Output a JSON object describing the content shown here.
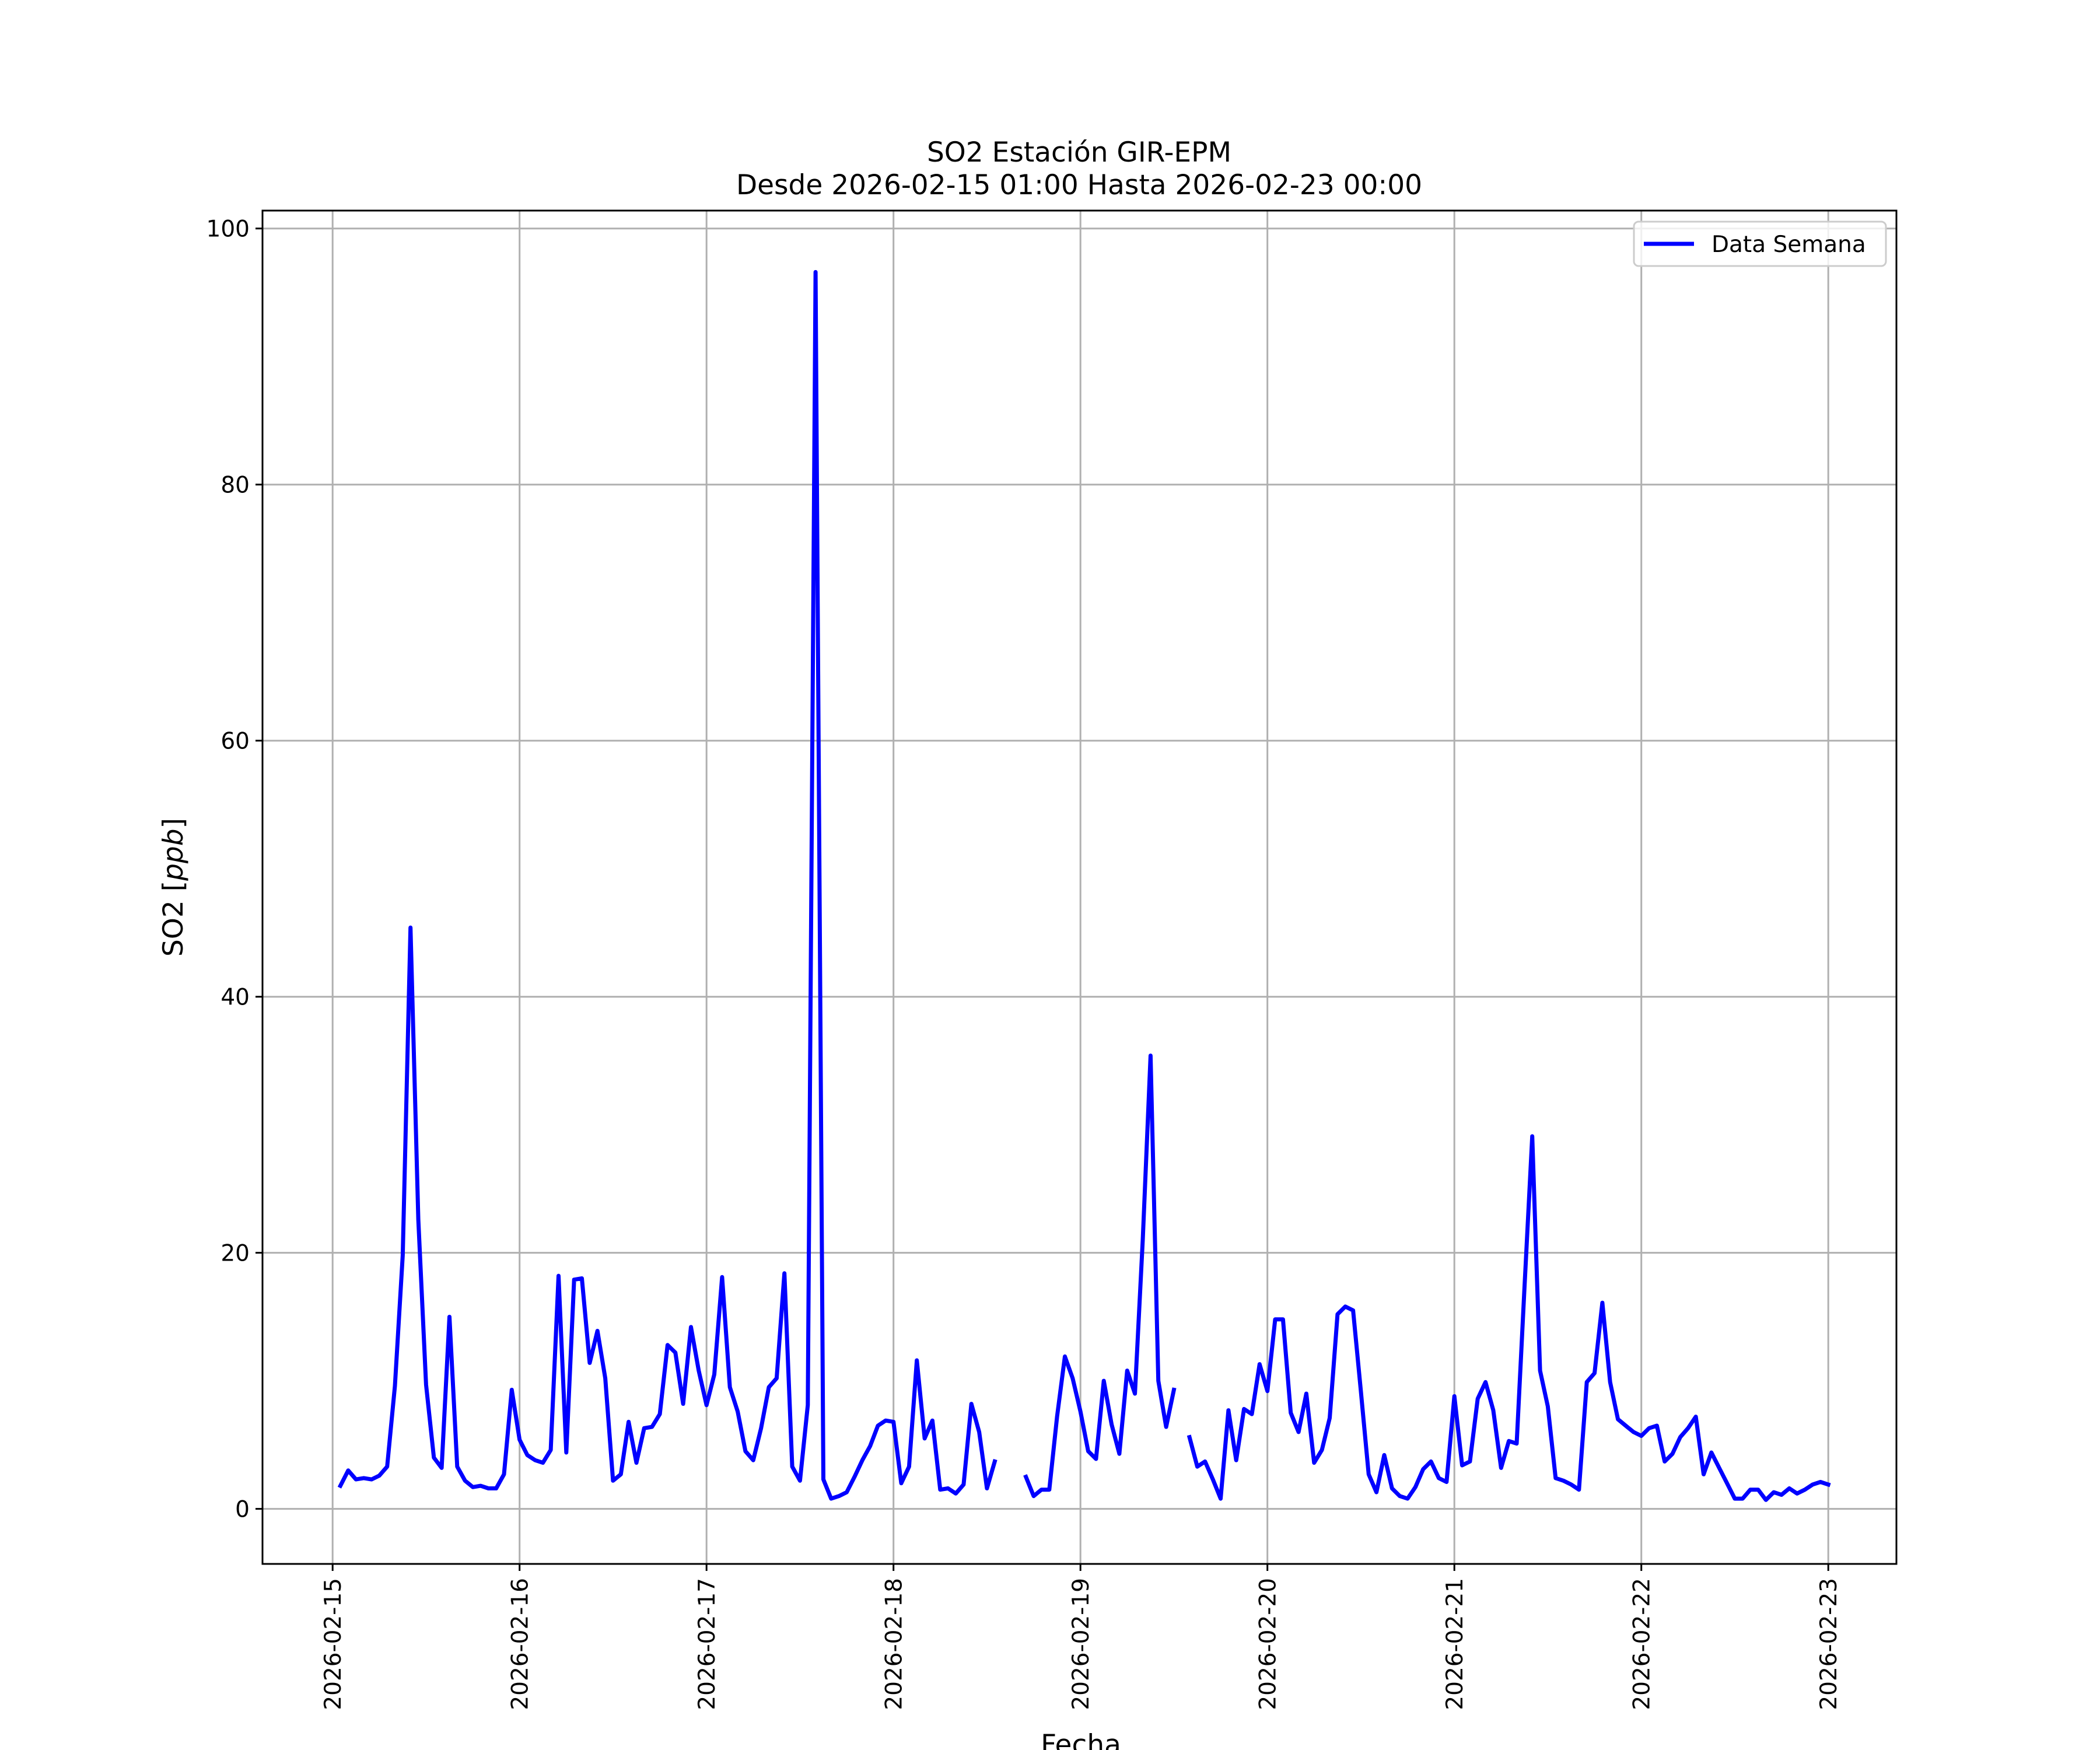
{
  "chart_data": {
    "type": "line",
    "title": "SO2 Estación GIR-EPM",
    "subtitle": "Desde 2026-02-15 01:00 Hasta 2026-02-23 00:00",
    "xlabel": "Fecha",
    "ylabel": "SO2 [ppb]",
    "ylabel_plain": "SO2 [",
    "ylabel_italic": "ppb",
    "ylabel_close": "]",
    "xlim": [
      "2026-02-14 15:00",
      "2026-02-23 08:45"
    ],
    "ylim": [
      -4.3,
      101.4
    ],
    "x_ticks": [
      "2026-02-15",
      "2026-02-16",
      "2026-02-17",
      "2026-02-18",
      "2026-02-19",
      "2026-02-20",
      "2026-02-21",
      "2026-02-22",
      "2026-02-23"
    ],
    "y_ticks": [
      0,
      20,
      40,
      60,
      80,
      100
    ],
    "grid": true,
    "legend_position": "top-right",
    "series": [
      {
        "name": "Data Semana",
        "color": "#0000ff",
        "points": [
          [
            "2026-02-15 01:00",
            1.8
          ],
          [
            "2026-02-15 02:00",
            3.0
          ],
          [
            "2026-02-15 03:00",
            2.3
          ],
          [
            "2026-02-15 04:00",
            2.4
          ],
          [
            "2026-02-15 05:00",
            2.3
          ],
          [
            "2026-02-15 06:00",
            2.6
          ],
          [
            "2026-02-15 07:00",
            3.3
          ],
          [
            "2026-02-15 08:00",
            9.6
          ],
          [
            "2026-02-15 09:00",
            19.8
          ],
          [
            "2026-02-15 10:00",
            45.4
          ],
          [
            "2026-02-15 11:00",
            22.6
          ],
          [
            "2026-02-15 12:00",
            9.7
          ],
          [
            "2026-02-15 13:00",
            4.0
          ],
          [
            "2026-02-15 14:00",
            3.2
          ],
          [
            "2026-02-15 15:00",
            15.0
          ],
          [
            "2026-02-15 16:00",
            3.3
          ],
          [
            "2026-02-15 17:00",
            2.2
          ],
          [
            "2026-02-15 18:00",
            1.7
          ],
          [
            "2026-02-15 19:00",
            1.8
          ],
          [
            "2026-02-15 20:00",
            1.6
          ],
          [
            "2026-02-15 21:00",
            1.6
          ],
          [
            "2026-02-15 22:00",
            2.7
          ],
          [
            "2026-02-15 23:00",
            9.3
          ],
          [
            "2026-02-16 00:00",
            5.4
          ],
          [
            "2026-02-16 01:00",
            4.2
          ],
          [
            "2026-02-16 02:00",
            3.8
          ],
          [
            "2026-02-16 03:00",
            3.6
          ],
          [
            "2026-02-16 04:00",
            4.6
          ],
          [
            "2026-02-16 05:00",
            18.2
          ],
          [
            "2026-02-16 06:00",
            4.4
          ],
          [
            "2026-02-16 07:00",
            17.9
          ],
          [
            "2026-02-16 08:00",
            18.0
          ],
          [
            "2026-02-16 09:00",
            11.4
          ],
          [
            "2026-02-16 10:00",
            13.9
          ],
          [
            "2026-02-16 11:00",
            10.2
          ],
          [
            "2026-02-16 12:00",
            2.2
          ],
          [
            "2026-02-16 13:00",
            2.7
          ],
          [
            "2026-02-16 14:00",
            6.8
          ],
          [
            "2026-02-16 15:00",
            3.6
          ],
          [
            "2026-02-16 16:00",
            6.3
          ],
          [
            "2026-02-16 17:00",
            6.4
          ],
          [
            "2026-02-16 18:00",
            7.4
          ],
          [
            "2026-02-16 19:00",
            12.8
          ],
          [
            "2026-02-16 20:00",
            12.2
          ],
          [
            "2026-02-16 21:00",
            8.2
          ],
          [
            "2026-02-16 22:00",
            14.2
          ],
          [
            "2026-02-16 23:00",
            10.8
          ],
          [
            "2026-02-17 00:00",
            8.1
          ],
          [
            "2026-02-17 01:00",
            10.5
          ],
          [
            "2026-02-17 02:00",
            18.1
          ],
          [
            "2026-02-17 03:00",
            9.5
          ],
          [
            "2026-02-17 04:00",
            7.6
          ],
          [
            "2026-02-17 05:00",
            4.5
          ],
          [
            "2026-02-17 06:00",
            3.8
          ],
          [
            "2026-02-17 07:00",
            6.3
          ],
          [
            "2026-02-17 08:00",
            9.5
          ],
          [
            "2026-02-17 09:00",
            10.2
          ],
          [
            "2026-02-17 10:00",
            18.4
          ],
          [
            "2026-02-17 11:00",
            3.3
          ],
          [
            "2026-02-17 12:00",
            2.2
          ],
          [
            "2026-02-17 13:00",
            8.1
          ],
          [
            "2026-02-17 14:00",
            96.6
          ],
          [
            "2026-02-17 15:00",
            2.3
          ],
          [
            "2026-02-17 16:00",
            0.8
          ],
          [
            "2026-02-17 17:00",
            1.0
          ],
          [
            "2026-02-17 18:00",
            1.3
          ],
          [
            "2026-02-17 19:00",
            2.5
          ],
          [
            "2026-02-17 20:00",
            3.8
          ],
          [
            "2026-02-17 21:00",
            4.9
          ],
          [
            "2026-02-17 22:00",
            6.5
          ],
          [
            "2026-02-17 23:00",
            6.9
          ],
          [
            "2026-02-18 00:00",
            6.8
          ],
          [
            "2026-02-18 01:00",
            2.0
          ],
          [
            "2026-02-18 02:00",
            3.3
          ],
          [
            "2026-02-18 03:00",
            11.6
          ],
          [
            "2026-02-18 04:00",
            5.5
          ],
          [
            "2026-02-18 05:00",
            6.9
          ],
          [
            "2026-02-18 06:00",
            1.5
          ],
          [
            "2026-02-18 07:00",
            1.6
          ],
          [
            "2026-02-18 08:00",
            1.2
          ],
          [
            "2026-02-18 09:00",
            1.9
          ],
          [
            "2026-02-18 10:00",
            8.2
          ],
          [
            "2026-02-18 11:00",
            6.0
          ],
          [
            "2026-02-18 12:00",
            1.6
          ],
          [
            "2026-02-18 13:00",
            3.7
          ],
          [
            "2026-02-18 14:00",
            null
          ],
          [
            "2026-02-18 15:00",
            null
          ],
          [
            "2026-02-18 16:00",
            null
          ],
          [
            "2026-02-18 17:00",
            2.5
          ],
          [
            "2026-02-18 18:00",
            1.0
          ],
          [
            "2026-02-18 19:00",
            1.5
          ],
          [
            "2026-02-18 20:00",
            1.5
          ],
          [
            "2026-02-18 21:00",
            7.2
          ],
          [
            "2026-02-18 22:00",
            11.9
          ],
          [
            "2026-02-18 23:00",
            10.2
          ],
          [
            "2026-02-19 00:00",
            7.6
          ],
          [
            "2026-02-19 01:00",
            4.5
          ],
          [
            "2026-02-19 02:00",
            3.9
          ],
          [
            "2026-02-19 03:00",
            10.0
          ],
          [
            "2026-02-19 04:00",
            6.6
          ],
          [
            "2026-02-19 05:00",
            4.3
          ],
          [
            "2026-02-19 06:00",
            10.8
          ],
          [
            "2026-02-19 07:00",
            9.0
          ],
          [
            "2026-02-19 08:00",
            21.0
          ],
          [
            "2026-02-19 09:00",
            35.4
          ],
          [
            "2026-02-19 10:00",
            10.0
          ],
          [
            "2026-02-19 11:00",
            6.4
          ],
          [
            "2026-02-19 12:00",
            9.3
          ],
          [
            "2026-02-19 13:00",
            null
          ],
          [
            "2026-02-19 14:00",
            5.6
          ],
          [
            "2026-02-19 15:00",
            3.3
          ],
          [
            "2026-02-19 16:00",
            3.7
          ],
          [
            "2026-02-19 17:00",
            2.3
          ],
          [
            "2026-02-19 18:00",
            0.8
          ],
          [
            "2026-02-19 19:00",
            7.7
          ],
          [
            "2026-02-19 20:00",
            3.8
          ],
          [
            "2026-02-19 21:00",
            7.8
          ],
          [
            "2026-02-19 22:00",
            7.4
          ],
          [
            "2026-02-19 23:00",
            11.3
          ],
          [
            "2026-02-20 00:00",
            9.2
          ],
          [
            "2026-02-20 01:00",
            14.8
          ],
          [
            "2026-02-20 02:00",
            14.8
          ],
          [
            "2026-02-20 03:00",
            7.5
          ],
          [
            "2026-02-20 04:00",
            6.0
          ],
          [
            "2026-02-20 05:00",
            9.0
          ],
          [
            "2026-02-20 06:00",
            3.6
          ],
          [
            "2026-02-20 07:00",
            4.6
          ],
          [
            "2026-02-20 08:00",
            7.1
          ],
          [
            "2026-02-20 09:00",
            15.2
          ],
          [
            "2026-02-20 10:00",
            15.8
          ],
          [
            "2026-02-20 11:00",
            15.5
          ],
          [
            "2026-02-20 12:00",
            9.2
          ],
          [
            "2026-02-20 13:00",
            2.7
          ],
          [
            "2026-02-20 14:00",
            1.3
          ],
          [
            "2026-02-20 15:00",
            4.2
          ],
          [
            "2026-02-20 16:00",
            1.6
          ],
          [
            "2026-02-20 17:00",
            1.0
          ],
          [
            "2026-02-20 18:00",
            0.8
          ],
          [
            "2026-02-20 19:00",
            1.7
          ],
          [
            "2026-02-20 20:00",
            3.1
          ],
          [
            "2026-02-20 21:00",
            3.7
          ],
          [
            "2026-02-20 22:00",
            2.4
          ],
          [
            "2026-02-20 23:00",
            2.1
          ],
          [
            "2026-02-21 00:00",
            8.8
          ],
          [
            "2026-02-21 01:00",
            3.4
          ],
          [
            "2026-02-21 02:00",
            3.7
          ],
          [
            "2026-02-21 03:00",
            8.6
          ],
          [
            "2026-02-21 04:00",
            9.9
          ],
          [
            "2026-02-21 05:00",
            7.7
          ],
          [
            "2026-02-21 06:00",
            3.2
          ],
          [
            "2026-02-21 07:00",
            5.3
          ],
          [
            "2026-02-21 08:00",
            5.1
          ],
          [
            "2026-02-21 09:00",
            17.2
          ],
          [
            "2026-02-21 10:00",
            29.1
          ],
          [
            "2026-02-21 11:00",
            10.8
          ],
          [
            "2026-02-21 12:00",
            8.0
          ],
          [
            "2026-02-21 13:00",
            2.4
          ],
          [
            "2026-02-21 14:00",
            2.2
          ],
          [
            "2026-02-21 15:00",
            1.9
          ],
          [
            "2026-02-21 16:00",
            1.5
          ],
          [
            "2026-02-21 17:00",
            9.9
          ],
          [
            "2026-02-21 18:00",
            10.6
          ],
          [
            "2026-02-21 19:00",
            16.1
          ],
          [
            "2026-02-21 20:00",
            9.9
          ],
          [
            "2026-02-21 21:00",
            7.0
          ],
          [
            "2026-02-21 22:00",
            6.5
          ],
          [
            "2026-02-21 23:00",
            6.0
          ],
          [
            "2026-02-22 00:00",
            5.7
          ],
          [
            "2026-02-22 01:00",
            6.3
          ],
          [
            "2026-02-22 02:00",
            6.5
          ],
          [
            "2026-02-22 03:00",
            3.7
          ],
          [
            "2026-02-22 04:00",
            4.3
          ],
          [
            "2026-02-22 05:00",
            5.6
          ],
          [
            "2026-02-22 06:00",
            6.3
          ],
          [
            "2026-02-22 07:00",
            7.2
          ],
          [
            "2026-02-22 08:00",
            2.7
          ],
          [
            "2026-02-22 09:00",
            4.4
          ],
          [
            "2026-02-22 10:00",
            3.2
          ],
          [
            "2026-02-22 11:00",
            2.0
          ],
          [
            "2026-02-22 12:00",
            0.8
          ],
          [
            "2026-02-22 13:00",
            0.8
          ],
          [
            "2026-02-22 14:00",
            1.5
          ],
          [
            "2026-02-22 15:00",
            1.5
          ],
          [
            "2026-02-22 16:00",
            0.7
          ],
          [
            "2026-02-22 17:00",
            1.3
          ],
          [
            "2026-02-22 18:00",
            1.1
          ],
          [
            "2026-02-22 19:00",
            1.6
          ],
          [
            "2026-02-22 20:00",
            1.2
          ],
          [
            "2026-02-22 21:00",
            1.5
          ],
          [
            "2026-02-22 22:00",
            1.9
          ],
          [
            "2026-02-22 23:00",
            2.1
          ],
          [
            "2026-02-23 00:00",
            1.9
          ]
        ]
      }
    ]
  }
}
